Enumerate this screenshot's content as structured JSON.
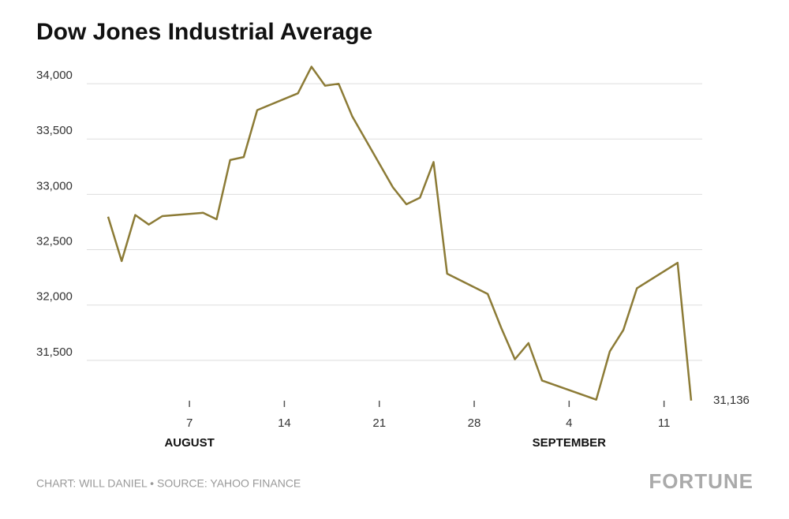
{
  "chart_data": {
    "type": "line",
    "title": "Dow Jones Industrial Average",
    "x": [
      "08-01",
      "08-02",
      "08-03",
      "08-04",
      "08-05",
      "08-08",
      "08-09",
      "08-10",
      "08-11",
      "08-12",
      "08-15",
      "08-16",
      "08-17",
      "08-18",
      "08-19",
      "08-22",
      "08-23",
      "08-24",
      "08-25",
      "08-26",
      "08-29",
      "08-30",
      "08-31",
      "09-01",
      "09-02",
      "09-06",
      "09-07",
      "09-08",
      "09-09",
      "09-12",
      "09-13"
    ],
    "series": [
      {
        "name": "Dow Jones Industrial Average",
        "color": "#8c7b36",
        "values": [
          32798,
          32397,
          32813,
          32727,
          32803,
          32833,
          32775,
          33310,
          33337,
          33761,
          33913,
          34153,
          33981,
          33999,
          33707,
          33064,
          32910,
          32970,
          33292,
          32283,
          32099,
          31791,
          31510,
          31656,
          31318,
          31145,
          31581,
          31775,
          32152,
          32381,
          31136
        ],
        "value_labels": [
          null,
          null,
          null,
          null,
          null,
          null,
          null,
          null,
          null,
          null,
          null,
          null,
          null,
          null,
          null,
          null,
          null,
          null,
          null,
          null,
          null,
          null,
          null,
          null,
          null,
          null,
          null,
          null,
          null,
          null,
          "31,136"
        ]
      }
    ],
    "xlim": [
      "08-01",
      "09-13"
    ],
    "xticks": [
      {
        "value": "08-07",
        "label": "7"
      },
      {
        "value": "08-14",
        "label": "14"
      },
      {
        "value": "08-21",
        "label": "21"
      },
      {
        "value": "08-28",
        "label": "28"
      },
      {
        "value": "09-04",
        "label": "4"
      },
      {
        "value": "09-11",
        "label": "11"
      }
    ],
    "month_labels": [
      {
        "value": "08-07",
        "label": "AUGUST"
      },
      {
        "value": "09-04",
        "label": "SEPTEMBER"
      }
    ],
    "ylim": [
      31100,
      34200
    ],
    "yticks": [
      {
        "value": 31500,
        "label": "31,500"
      },
      {
        "value": 32000,
        "label": "32,000"
      },
      {
        "value": 32500,
        "label": "32,500"
      },
      {
        "value": 33000,
        "label": "33,000"
      },
      {
        "value": 33500,
        "label": "33,500"
      },
      {
        "value": 34000,
        "label": "34,000"
      }
    ],
    "grid": true,
    "footer": "CHART: WILL DANIEL • SOURCE: YAHOO FINANCE",
    "brand": "FORTUNE"
  }
}
